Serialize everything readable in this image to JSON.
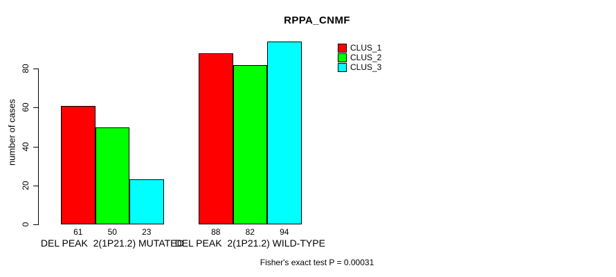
{
  "title": "RPPA_CNMF",
  "y_axis": {
    "label": "number of cases",
    "ticks": [
      0,
      20,
      40,
      60,
      80
    ]
  },
  "footer": "Fisher's exact test P = 0.00031",
  "legend": {
    "items": [
      {
        "label": "CLUS_1",
        "color": "#FF0000"
      },
      {
        "label": "CLUS_2",
        "color": "#00FF00"
      },
      {
        "label": "CLUS_3",
        "color": "#00FFFF"
      }
    ]
  },
  "chart_data": {
    "type": "bar",
    "title": "RPPA_CNMF",
    "xlabel": "",
    "ylabel": "number of cases",
    "categories": [
      "DEL PEAK  2(1P21.2) MUTATED",
      "DEL PEAK  2(1P21.2) WILD-TYPE"
    ],
    "series": [
      {
        "name": "CLUS_1",
        "color": "#FF0000",
        "values": [
          61,
          88
        ]
      },
      {
        "name": "CLUS_2",
        "color": "#00FF00",
        "values": [
          50,
          82
        ]
      },
      {
        "name": "CLUS_3",
        "color": "#00FFFF",
        "values": [
          23,
          94
        ]
      }
    ],
    "bar_value_labels_shown": true,
    "yticks": [
      0,
      20,
      40,
      60,
      80
    ],
    "ylim": [
      0,
      94
    ],
    "grid": false,
    "legend_position": "top-right",
    "annotation": "Fisher's exact test P = 0.00031"
  }
}
